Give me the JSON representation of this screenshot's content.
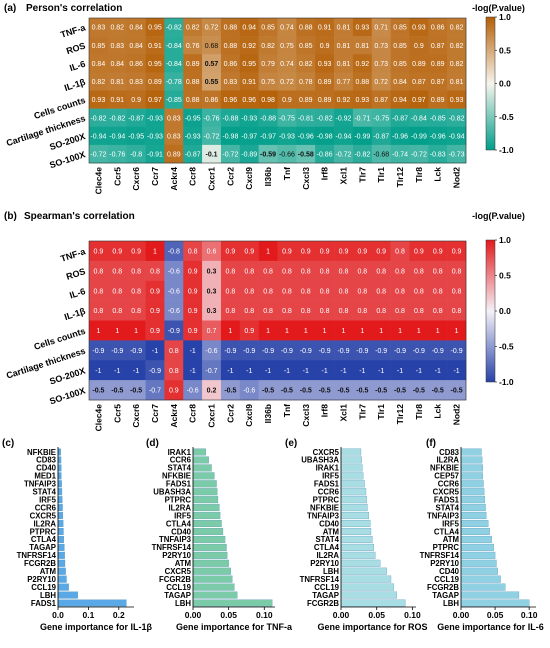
{
  "panels": {
    "a": {
      "label": "(a)",
      "chart_data": {
        "type": "heatmap",
        "title": "Person's correlation",
        "colorbar_label": "-log(P.value)",
        "colorbar_ticks": [
          "1.0",
          "0.5",
          "0.0",
          "-0.5",
          "-1.0"
        ],
        "colorbar_range": [
          -1.0,
          1.0
        ],
        "colors": {
          "high": "#b45f06",
          "mid": "#f7f4ec",
          "low": "#009e8a"
        },
        "rows": [
          "TNF-a",
          "ROS",
          "IL-6",
          "IL-1β",
          "Cells counts",
          "Cartilage thickness",
          "SO-200X",
          "SO-100X"
        ],
        "cols": [
          "Clec4e",
          "Ccr5",
          "Cxcr6",
          "Ccr7",
          "Ackr4",
          "Ccr8",
          "Cxcr1",
          "Ccr2",
          "Cxcl9",
          "Il36b",
          "Tnf",
          "Cxcl3",
          "Irf8",
          "Xcl1",
          "Tlr7",
          "Tlr1",
          "Tlr12",
          "Tlr8",
          "Lck",
          "Nod2"
        ],
        "values": [
          [
            0.83,
            0.82,
            0.84,
            0.95,
            -0.82,
            0.82,
            0.72,
            0.88,
            0.94,
            0.85,
            0.74,
            0.88,
            0.91,
            0.81,
            0.93,
            0.71,
            0.85,
            0.93,
            0.86,
            0.82
          ],
          [
            0.85,
            0.83,
            0.84,
            0.91,
            -0.84,
            0.76,
            0.68,
            0.88,
            0.92,
            0.82,
            0.75,
            0.85,
            0.9,
            0.81,
            0.81,
            0.73,
            0.85,
            0.9,
            0.87,
            0.82
          ],
          [
            0.84,
            0.84,
            0.86,
            0.95,
            -0.84,
            0.89,
            0.57,
            0.86,
            0.95,
            0.79,
            0.74,
            0.82,
            0.93,
            0.81,
            0.92,
            0.73,
            0.85,
            0.89,
            0.89,
            0.82
          ],
          [
            0.82,
            0.81,
            0.83,
            0.89,
            -0.78,
            0.88,
            0.55,
            0.83,
            0.91,
            0.75,
            0.72,
            0.78,
            0.89,
            0.77,
            0.88,
            0.72,
            0.84,
            0.87,
            0.87,
            0.81
          ],
          [
            0.93,
            0.91,
            0.9,
            0.97,
            -0.85,
            0.88,
            0.86,
            0.96,
            0.96,
            0.98,
            0.9,
            0.89,
            0.89,
            0.92,
            0.93,
            0.87,
            0.94,
            0.97,
            0.89,
            0.93
          ],
          [
            -0.82,
            -0.82,
            -0.87,
            -0.93,
            0.83,
            -0.95,
            -0.76,
            -0.88,
            -0.93,
            -0.88,
            -0.75,
            -0.81,
            -0.82,
            -0.92,
            -0.71,
            -0.75,
            -0.87,
            -0.84,
            -0.85,
            -0.82
          ],
          [
            -0.94,
            -0.94,
            -0.95,
            -0.93,
            0.83,
            -0.93,
            -0.72,
            -0.98,
            -0.97,
            -0.97,
            -0.93,
            -0.96,
            -0.98,
            -0.94,
            -0.99,
            -0.87,
            -0.96,
            -0.99,
            -0.96,
            -0.94
          ],
          [
            -0.72,
            -0.76,
            -0.8,
            -0.91,
            0.89,
            -0.87,
            -0.1,
            -0.72,
            -0.89,
            -0.59,
            -0.66,
            -0.58,
            -0.86,
            -0.72,
            -0.82,
            -0.68,
            -0.74,
            -0.72,
            -0.83,
            -0.73
          ]
        ],
        "labels": [
          [
            "0.83",
            "0.82",
            "0.84",
            "0.95",
            "-0.82",
            "0.82",
            "0.72",
            "0.88",
            "0.94",
            "0.85",
            "0.74",
            "0.88",
            "0.91",
            "0.81",
            "0.93",
            "0.71",
            "0.85",
            "0.93",
            "0.86",
            "0.82"
          ],
          [
            "0.85",
            "0.83",
            "0.84",
            "0.91",
            "-0.84",
            "0.76",
            "0.68",
            "0.88",
            "0.92",
            "0.82",
            "0.75",
            "0.85",
            "0.9",
            "0.81",
            "0.81",
            "0.73",
            "0.85",
            "0.9",
            "0.87",
            "0.82"
          ],
          [
            "0.84",
            "0.84",
            "0.86",
            "0.95",
            "-0.84",
            "0.89",
            "0.57",
            "0.86",
            "0.95",
            "0.79",
            "0.74",
            "0.82",
            "0.93",
            "0.81",
            "0.92",
            "0.73",
            "0.85",
            "0.89",
            "0.89",
            "0.82"
          ],
          [
            "0.82",
            "0.81",
            "0.83",
            "0.89",
            "-0.78",
            "0.88",
            "0.55",
            "0.83",
            "0.91",
            "0.75",
            "0.72",
            "0.78",
            "0.89",
            "0.77",
            "0.88",
            "0.72",
            "0.84",
            "0.87",
            "0.87",
            "0.81"
          ],
          [
            "0.93",
            "0.91",
            "0.9",
            "0.97",
            "-0.85",
            "0.88",
            "0.86",
            "0.96",
            "0.96",
            "0.98",
            "0.9",
            "0.89",
            "0.89",
            "0.92",
            "0.93",
            "0.87",
            "0.94",
            "0.97",
            "0.89",
            "0.93"
          ],
          [
            "-0.82",
            "-0.82",
            "-0.87",
            "-0.93",
            "0.83",
            "-0.95",
            "-0.76",
            "-0.88",
            "-0.93",
            "-0.88",
            "-0.75",
            "-0.81",
            "-0.82",
            "-0.92",
            "-0.71",
            "-0.75",
            "-0.87",
            "-0.84",
            "-0.85",
            "-0.82"
          ],
          [
            "-0.94",
            "-0.94",
            "-0.95",
            "-0.93",
            "0.83",
            "-0.93",
            "-0.72",
            "-0.98",
            "-0.97",
            "-0.97",
            "-0.93",
            "-0.96",
            "-0.98",
            "-0.94",
            "-0.99",
            "-0.87",
            "-0.96",
            "-0.99",
            "-0.96",
            "-0.94"
          ],
          [
            "-0.72",
            "-0.76",
            "-0.8",
            "-0.91",
            "0.89",
            "-0.87",
            "-0.1",
            "-0.72",
            "-0.89",
            "-0.59",
            "-0.66",
            "-0.58",
            "-0.86",
            "-0.72",
            "-0.82",
            "-0.68",
            "-0.74",
            "-0.72",
            "-0.83",
            "-0.73"
          ]
        ]
      }
    },
    "b": {
      "label": "(b)",
      "chart_data": {
        "type": "heatmap",
        "title": "Spearman's correlation",
        "colorbar_label": "-log(P.value)",
        "colorbar_ticks": [
          "1.0",
          "0.5",
          "0.0",
          "-0.5",
          "-1.0"
        ],
        "colorbar_range": [
          -1.0,
          1.0
        ],
        "colors": {
          "high": "#e31a1c",
          "mid": "#f4f1f8",
          "low": "#2742a8"
        },
        "rows": [
          "TNF-a",
          "ROS",
          "IL-6",
          "IL-1β",
          "Cells counts",
          "Cartilage thickness",
          "SO-200X",
          "SO-100X"
        ],
        "cols": [
          "Clec4e",
          "Ccr5",
          "Cxcr6",
          "Ccr7",
          "Ackr4",
          "Ccr8",
          "Cxcr1",
          "Ccr2",
          "Cxcl9",
          "Il36b",
          "Tnf",
          "Cxcl3",
          "Irf8",
          "Xcl1",
          "Tlr7",
          "Tlr1",
          "Tlr12",
          "Tlr8",
          "Lck",
          "Nod2"
        ],
        "values": [
          [
            0.9,
            0.9,
            0.9,
            1,
            -0.8,
            0.8,
            0.6,
            0.9,
            0.9,
            1,
            0.9,
            0.9,
            0.9,
            0.9,
            0.9,
            0.9,
            0.8,
            0.9,
            0.9,
            0.9
          ],
          [
            0.8,
            0.8,
            0.8,
            0.8,
            -0.6,
            0.9,
            0.3,
            0.8,
            0.8,
            0.8,
            0.8,
            0.8,
            0.8,
            0.8,
            0.8,
            0.8,
            0.8,
            0.8,
            0.8,
            0.8
          ],
          [
            0.8,
            0.8,
            0.8,
            0.9,
            -0.6,
            0.9,
            0.3,
            0.8,
            0.8,
            0.8,
            0.8,
            0.8,
            0.8,
            0.8,
            0.8,
            0.8,
            0.8,
            0.8,
            0.8,
            0.8
          ],
          [
            0.8,
            0.8,
            0.8,
            0.9,
            -0.6,
            0.9,
            0.3,
            0.8,
            0.8,
            0.8,
            0.8,
            0.8,
            0.8,
            0.8,
            0.8,
            0.8,
            0.8,
            0.8,
            0.8,
            0.8
          ],
          [
            1,
            1,
            1,
            0.9,
            -0.9,
            0.9,
            0.7,
            1,
            0.9,
            1,
            1,
            1,
            1,
            1,
            1,
            1,
            1,
            1,
            1,
            1
          ],
          [
            -0.9,
            -0.9,
            -0.9,
            -1,
            0.8,
            -1,
            -0.6,
            -0.9,
            -0.9,
            -0.9,
            -0.9,
            -0.9,
            -0.9,
            -0.9,
            -0.9,
            -0.9,
            -0.9,
            -0.9,
            -0.9,
            -0.9
          ],
          [
            -1,
            -1,
            -1,
            -0.9,
            0.8,
            -1,
            -0.7,
            -1,
            -1,
            -1,
            -1,
            -1,
            -1,
            -1,
            -1,
            -1,
            -1,
            -1,
            -1,
            -1
          ],
          [
            -0.5,
            -0.5,
            -0.5,
            -0.7,
            0.9,
            -0.6,
            0.2,
            -0.5,
            -0.6,
            -0.5,
            -0.5,
            -0.5,
            -0.5,
            -0.5,
            -0.5,
            -0.5,
            -0.5,
            -0.5,
            -0.5,
            -0.5
          ]
        ],
        "labels": [
          [
            "0.9",
            "0.9",
            "0.9",
            "1",
            "-0.8",
            "0.8",
            "0.6",
            "0.9",
            "0.9",
            "1",
            "0.9",
            "0.9",
            "0.9",
            "0.9",
            "0.9",
            "0.9",
            "0.8",
            "0.9",
            "0.9",
            "0.9"
          ],
          [
            "0.8",
            "0.8",
            "0.8",
            "0.8",
            "-0.6",
            "0.9",
            "0.3",
            "0.8",
            "0.8",
            "0.8",
            "0.8",
            "0.8",
            "0.8",
            "0.8",
            "0.8",
            "0.8",
            "0.8",
            "0.8",
            "0.8",
            "0.8"
          ],
          [
            "0.8",
            "0.8",
            "0.8",
            "0.9",
            "-0.6",
            "0.9",
            "0.3",
            "0.8",
            "0.8",
            "0.8",
            "0.8",
            "0.8",
            "0.8",
            "0.8",
            "0.8",
            "0.8",
            "0.8",
            "0.8",
            "0.8",
            "0.8"
          ],
          [
            "0.8",
            "0.8",
            "0.8",
            "0.9",
            "-0.6",
            "0.9",
            "0.3",
            "0.8",
            "0.8",
            "0.8",
            "0.8",
            "0.8",
            "0.8",
            "0.8",
            "0.8",
            "0.8",
            "0.8",
            "0.8",
            "0.8",
            "0.8"
          ],
          [
            "1",
            "1",
            "1",
            "0.9",
            "-0.9",
            "0.9",
            "0.7",
            "1",
            "0.9",
            "1",
            "1",
            "1",
            "1",
            "1",
            "1",
            "1",
            "1",
            "1",
            "1",
            "1"
          ],
          [
            "-0.9",
            "-0.9",
            "-0.9",
            "-1",
            "0.8",
            "-1",
            "-0.6",
            "-0.9",
            "-0.9",
            "-0.9",
            "-0.9",
            "-0.9",
            "-0.9",
            "-0.9",
            "-0.9",
            "-0.9",
            "-0.9",
            "-0.9",
            "-0.9",
            "-0.9"
          ],
          [
            "-1",
            "-1",
            "-1",
            "-0.9",
            "0.8",
            "-1",
            "-0.7",
            "-1",
            "-1",
            "-1",
            "-1",
            "-1",
            "-1",
            "-1",
            "-1",
            "-1",
            "-1",
            "-1",
            "-1",
            "-1"
          ],
          [
            "-0.5",
            "-0.5",
            "-0.5",
            "-0.7",
            "0.9",
            "-0.6",
            "0.2",
            "-0.5",
            "-0.6",
            "-0.5",
            "-0.5",
            "-0.5",
            "-0.5",
            "-0.5",
            "-0.5",
            "-0.5",
            "-0.5",
            "-0.5",
            "-0.5",
            "-0.5"
          ]
        ]
      }
    },
    "c": {
      "label": "(c)",
      "chart_data": {
        "type": "bar",
        "orientation": "horizontal",
        "xlabel": "Gene importance for IL-1β",
        "xlim": [
          0,
          0.25
        ],
        "xticks": [
          "0.0",
          "0.1",
          "0.2"
        ],
        "xtick_values": [
          0,
          0.1,
          0.2
        ],
        "color": "#5aa9e6",
        "categories": [
          "NFKBIE",
          "CD83",
          "CD40",
          "MED1",
          "TNFAIP3",
          "STAT4",
          "IRF5",
          "CCR6",
          "CXCR5",
          "IL2RA",
          "PTPRC",
          "CTLA4",
          "TAGAP",
          "TNFRSF14",
          "FCGR2B",
          "ATM",
          "P2RY10",
          "CCL19",
          "LBH",
          "FADS1"
        ],
        "values": [
          0.009,
          0.01,
          0.011,
          0.011,
          0.012,
          0.013,
          0.014,
          0.015,
          0.016,
          0.017,
          0.018,
          0.019,
          0.021,
          0.022,
          0.023,
          0.025,
          0.028,
          0.035,
          0.065,
          0.225
        ]
      }
    },
    "d": {
      "label": "(d)",
      "chart_data": {
        "type": "bar",
        "orientation": "horizontal",
        "xlabel": "Gene importance for TNF-a",
        "xlim": [
          0,
          0.115
        ],
        "xticks": [
          "0.00",
          "0.05",
          "0.10"
        ],
        "xtick_values": [
          0,
          0.05,
          0.1
        ],
        "color": "#7ccba8",
        "categories": [
          "IRAK1",
          "CCR6",
          "STAT4",
          "NFKBIE",
          "FADS1",
          "UBASH3A",
          "PTPRC",
          "IL2RA",
          "IRF5",
          "CTLA4",
          "CD40",
          "TNFAIP3",
          "TNFRSF14",
          "P2RY10",
          "ATM",
          "CXCR5",
          "FCGR2B",
          "CCL19",
          "TAGAP",
          "LBH"
        ],
        "values": [
          0.018,
          0.022,
          0.026,
          0.03,
          0.033,
          0.034,
          0.035,
          0.037,
          0.038,
          0.04,
          0.042,
          0.045,
          0.047,
          0.048,
          0.05,
          0.053,
          0.055,
          0.058,
          0.062,
          0.111
        ]
      }
    },
    "e": {
      "label": "(e)",
      "chart_data": {
        "type": "bar",
        "orientation": "horizontal",
        "xlabel": "Gene importance for ROS",
        "xlim": [
          0,
          0.105
        ],
        "xticks": [
          "0.00",
          "0.05",
          "0.10"
        ],
        "xtick_values": [
          0,
          0.05,
          0.1
        ],
        "color": "#a8dde3",
        "categories": [
          "CXCR5",
          "UBASH3A",
          "IRAK1",
          "IRF5",
          "FADS1",
          "CCR6",
          "PTPRC",
          "NFKBIE",
          "TNFAIP3",
          "CD40",
          "ATM",
          "STAT4",
          "CTLA4",
          "IL2RA",
          "P2RY10",
          "LBH",
          "TNFRSF14",
          "CCL19",
          "TAGAP",
          "FCGR2B"
        ],
        "values": [
          0.028,
          0.029,
          0.03,
          0.031,
          0.033,
          0.035,
          0.036,
          0.037,
          0.039,
          0.041,
          0.042,
          0.044,
          0.046,
          0.048,
          0.055,
          0.064,
          0.07,
          0.074,
          0.078,
          0.09
        ]
      }
    },
    "f": {
      "label": "(f)",
      "chart_data": {
        "type": "bar",
        "orientation": "horizontal",
        "xlabel": "Gene importance for IL-6",
        "xlim": [
          0,
          0.11
        ],
        "xticks": [
          "0.00",
          "0.05",
          "0.10"
        ],
        "xtick_values": [
          0,
          0.05,
          0.1
        ],
        "color": "#8fd0e3",
        "categories": [
          "CD83",
          "IL2RA",
          "NFKBIE",
          "CEP57",
          "CCR6",
          "CXCR5",
          "FADS1",
          "STAT4",
          "TNFAIP3",
          "IRF5",
          "CTLA4",
          "ATM",
          "PTPRC",
          "TNFRSF14",
          "P2RY10",
          "CD40",
          "CCL19",
          "FCGR2B",
          "TAGAP",
          "LBH"
        ],
        "values": [
          0.03,
          0.031,
          0.032,
          0.032,
          0.033,
          0.034,
          0.035,
          0.036,
          0.037,
          0.04,
          0.042,
          0.045,
          0.048,
          0.05,
          0.052,
          0.054,
          0.058,
          0.065,
          0.085,
          0.1
        ]
      }
    }
  }
}
